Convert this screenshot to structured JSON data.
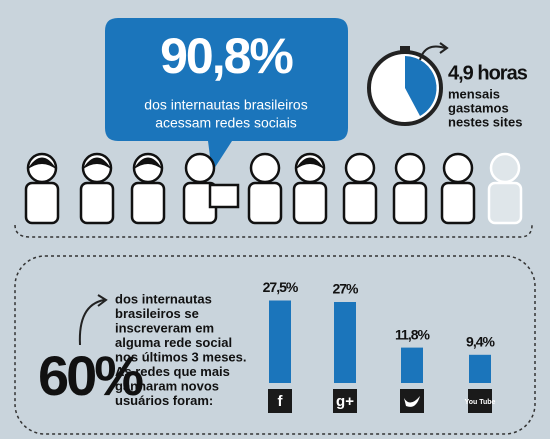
{
  "headline": {
    "value": "90,8%",
    "lines": [
      "dos internautas brasileiros",
      "acessam redes sociais"
    ]
  },
  "time": {
    "value": "4,9 horas",
    "lines": [
      "mensais",
      "gastamos",
      "nestes sites"
    ]
  },
  "signup": {
    "value": "60%",
    "lines": [
      "dos internautas",
      "brasileiros se",
      "inscreveram em",
      "alguma rede social",
      "nos últimos 3 meses.",
      "As redes que mais",
      "ganharam novos",
      "usuários foram:"
    ]
  },
  "chart_data": {
    "type": "bar",
    "categories": [
      "f",
      "g+",
      null,
      "You Tube"
    ],
    "values": [
      27.5,
      27,
      11.8,
      9.4
    ],
    "value_labels": [
      "27,5%",
      "27%",
      "11,8%",
      "9,4%"
    ],
    "color": "#1b75bb"
  }
}
